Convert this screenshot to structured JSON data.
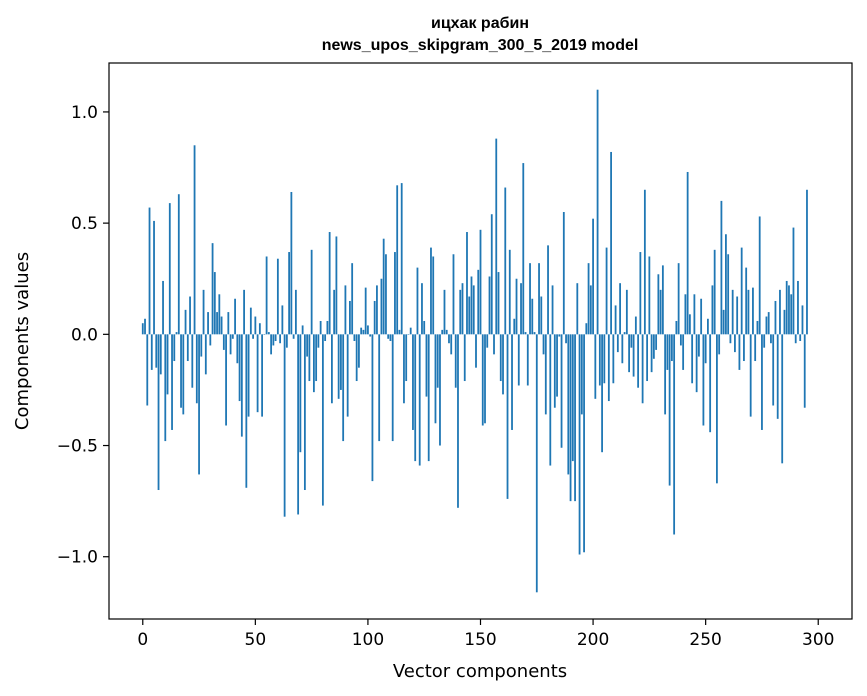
{
  "chart_data": {
    "type": "bar",
    "title": "ицхак рабин",
    "subtitle": "news_upos_skipgram_300_5_2019 model",
    "xlabel": "Vector components",
    "ylabel": "Components values",
    "xlim": [
      -15,
      315
    ],
    "ylim": [
      -1.28,
      1.22
    ],
    "xticks": [
      0,
      50,
      100,
      150,
      200,
      250,
      300
    ],
    "yticks": [
      -1.0,
      -0.5,
      0.0,
      0.5,
      1.0
    ],
    "ytick_labels": [
      "−1.0",
      "−0.5",
      "0.0",
      "0.5",
      "1.0"
    ],
    "bar_color": "#1f77b4",
    "grid": false,
    "values": [
      0.05,
      0.07,
      -0.32,
      0.57,
      -0.16,
      0.51,
      -0.15,
      -0.7,
      -0.18,
      0.24,
      -0.48,
      -0.27,
      0.59,
      -0.43,
      -0.12,
      0.01,
      0.63,
      -0.33,
      -0.36,
      0.11,
      -0.12,
      0.17,
      -0.24,
      0.85,
      -0.31,
      -0.63,
      -0.1,
      0.2,
      -0.18,
      0.1,
      -0.05,
      0.41,
      0.28,
      0.1,
      0.18,
      0.08,
      -0.07,
      -0.41,
      0.1,
      -0.09,
      -0.02,
      0.16,
      -0.13,
      -0.3,
      -0.46,
      0.2,
      -0.69,
      -0.37,
      0.12,
      -0.02,
      0.08,
      -0.35,
      0.05,
      -0.37,
      0.0,
      0.35,
      0.01,
      -0.09,
      -0.05,
      -0.03,
      0.34,
      -0.04,
      0.13,
      -0.82,
      -0.06,
      0.37,
      0.64,
      -0.02,
      0.2,
      -0.81,
      -0.53,
      0.04,
      -0.7,
      -0.1,
      -0.21,
      0.38,
      -0.26,
      -0.21,
      -0.06,
      0.06,
      -0.77,
      -0.03,
      0.06,
      0.46,
      -0.31,
      0.2,
      0.44,
      -0.29,
      -0.25,
      -0.48,
      0.22,
      -0.37,
      0.15,
      0.32,
      -0.03,
      -0.21,
      -0.15,
      0.03,
      0.02,
      0.21,
      0.04,
      -0.01,
      -0.66,
      0.15,
      0.22,
      -0.48,
      0.25,
      0.43,
      0.36,
      -0.02,
      -0.03,
      -0.48,
      0.37,
      0.67,
      0.02,
      0.68,
      -0.31,
      -0.21,
      0.0,
      0.03,
      -0.43,
      -0.57,
      0.3,
      -0.59,
      0.23,
      0.06,
      -0.28,
      -0.57,
      0.39,
      0.35,
      -0.4,
      -0.24,
      -0.5,
      0.02,
      0.2,
      0.02,
      -0.04,
      -0.09,
      0.36,
      -0.24,
      -0.78,
      0.2,
      0.23,
      -0.21,
      0.46,
      0.17,
      0.26,
      0.22,
      -0.15,
      0.29,
      0.47,
      -0.41,
      -0.4,
      -0.06,
      0.26,
      0.54,
      -0.09,
      0.88,
      0.28,
      -0.21,
      -0.27,
      0.66,
      -0.74,
      0.38,
      -0.43,
      0.07,
      0.25,
      -0.23,
      0.23,
      0.77,
      0.01,
      -0.23,
      0.32,
      0.16,
      0.01,
      -1.16,
      0.32,
      0.17,
      -0.09,
      -0.36,
      0.4,
      -0.59,
      0.22,
      -0.33,
      -0.28,
      -0.01,
      -0.51,
      0.55,
      -0.04,
      -0.63,
      -0.75,
      -0.57,
      -0.75,
      0.23,
      -0.99,
      -0.36,
      -0.98,
      0.05,
      0.32,
      0.22,
      0.52,
      -0.29,
      1.1,
      -0.23,
      -0.53,
      -0.22,
      0.39,
      -0.3,
      0.82,
      -0.22,
      0.13,
      -0.08,
      0.23,
      -0.13,
      0.01,
      0.2,
      -0.17,
      -0.06,
      -0.19,
      0.08,
      -0.24,
      0.37,
      -0.31,
      0.65,
      -0.21,
      0.35,
      -0.17,
      -0.11,
      -0.07,
      0.27,
      0.2,
      0.31,
      -0.36,
      -0.16,
      -0.68,
      -0.12,
      -0.9,
      0.06,
      0.32,
      -0.05,
      -0.16,
      0.18,
      0.73,
      0.09,
      -0.22,
      0.18,
      -0.26,
      -0.1,
      0.16,
      -0.41,
      -0.13,
      0.07,
      -0.44,
      0.22,
      0.38,
      -0.67,
      -0.09,
      0.6,
      0.11,
      0.45,
      0.36,
      -0.04,
      0.2,
      -0.08,
      0.17,
      -0.16,
      0.39,
      -0.12,
      0.3,
      0.2,
      -0.37,
      0.21,
      -0.12,
      0.06,
      0.53,
      -0.43,
      -0.06,
      0.08,
      0.1,
      -0.04,
      -0.32,
      0.15,
      -0.38,
      0.2,
      -0.58,
      0.11,
      0.24,
      0.22,
      0.18,
      0.48,
      -0.04,
      0.24,
      -0.03,
      0.13,
      -0.33,
      0.65
    ]
  }
}
